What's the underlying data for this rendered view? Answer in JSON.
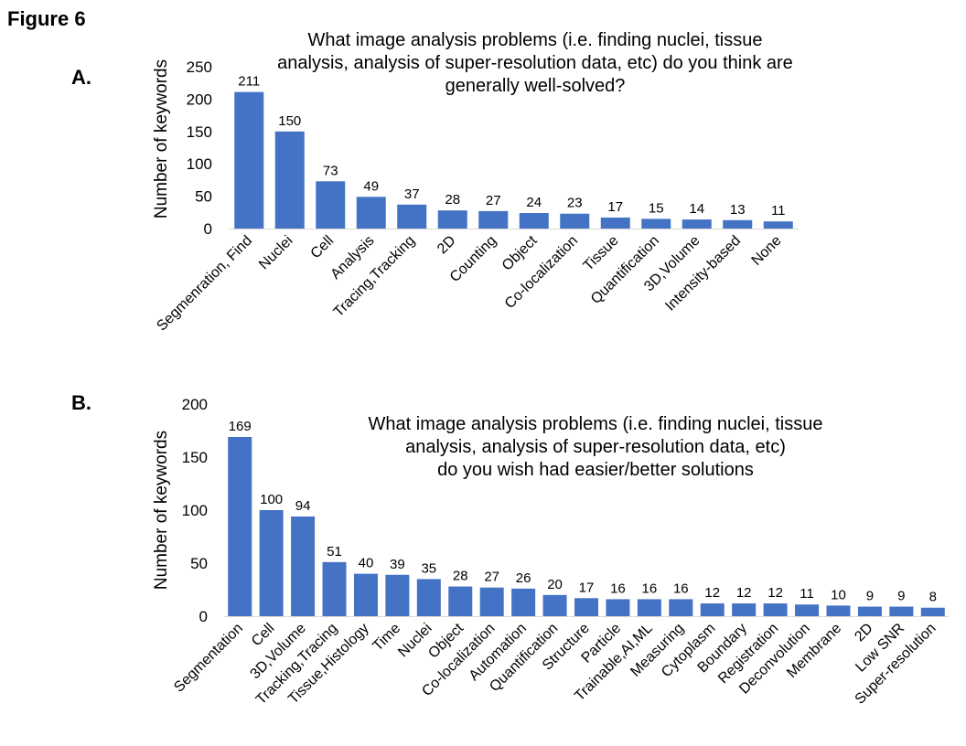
{
  "figure_title": "Figure 6",
  "chart_data": [
    {
      "panel": "A.",
      "type": "bar",
      "title_lines": [
        "What image analysis problems (i.e. finding nuclei, tissue",
        "analysis, analysis of super-resolution data, etc) do you think are",
        "generally well-solved?"
      ],
      "xlabel": "",
      "ylabel": "Number of keywords",
      "ylim": [
        0,
        250
      ],
      "yticks": [
        0,
        50,
        100,
        150,
        200,
        250
      ],
      "categories": [
        "Segmenration, Find",
        "Nuclei",
        "Cell",
        "Analysis",
        "Tracing,Tracking",
        "2D",
        "Counting",
        "Object",
        "Co-localization",
        "Tissue",
        "Quantification",
        "3D,Volume",
        "Intensity-based",
        "None"
      ],
      "values": [
        211,
        150,
        73,
        49,
        37,
        28,
        27,
        24,
        23,
        17,
        15,
        14,
        13,
        11
      ],
      "bar_color": "#4472c4",
      "grid": false,
      "legend": "none"
    },
    {
      "panel": "B.",
      "type": "bar",
      "title_lines": [
        "What image analysis problems (i.e. finding nuclei, tissue",
        "analysis, analysis of super-resolution data, etc)",
        "do you wish had easier/better solutions"
      ],
      "xlabel": "",
      "ylabel": "Number of keywords",
      "ylim": [
        0,
        200
      ],
      "yticks": [
        0,
        50,
        100,
        150,
        200
      ],
      "categories": [
        "Segmentation",
        "Cell",
        "3D,Volume",
        "Tracking,Tracing",
        "Tissue,Histology",
        "Time",
        "Nuclei",
        "Object",
        "Co-localization",
        "Automation",
        "Quantification",
        "Structure",
        "Particle",
        "Trainable,AI,ML",
        "Measuring",
        "Cytoplasm",
        "Boundary",
        "Registration",
        "Deconvolution",
        "Membrane",
        "2D",
        "Low SNR",
        "Super-resolution"
      ],
      "values": [
        169,
        100,
        94,
        51,
        40,
        39,
        35,
        28,
        27,
        26,
        20,
        17,
        16,
        16,
        16,
        12,
        12,
        12,
        11,
        10,
        9,
        9,
        8
      ],
      "bar_color": "#4472c4",
      "grid": false,
      "legend": "none"
    }
  ]
}
